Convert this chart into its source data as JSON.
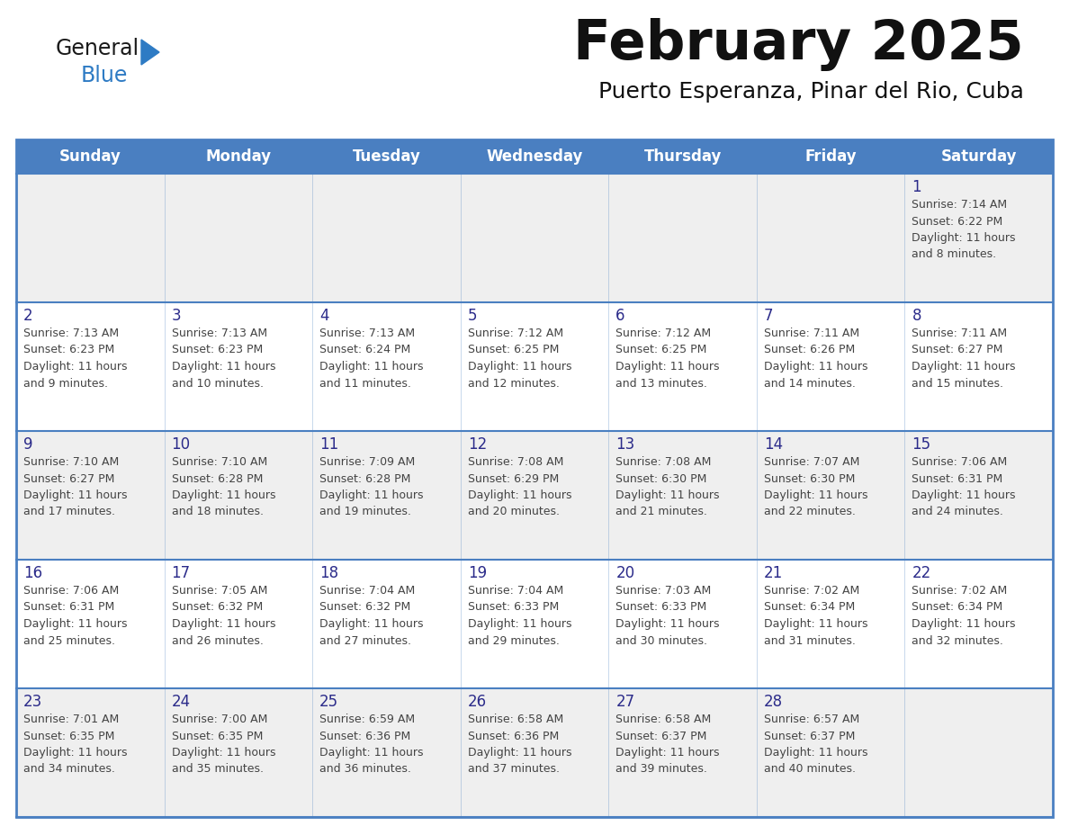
{
  "title": "February 2025",
  "subtitle": "Puerto Esperanza, Pinar del Rio, Cuba",
  "header_bg": "#4a7fc1",
  "header_text_color": "#ffffff",
  "row_bg_odd": "#efefef",
  "row_bg_even": "#ffffff",
  "cell_text_color": "#444444",
  "day_number_color": "#2b2b8a",
  "border_color": "#4a7fc1",
  "days_of_week": [
    "Sunday",
    "Monday",
    "Tuesday",
    "Wednesday",
    "Thursday",
    "Friday",
    "Saturday"
  ],
  "logo_general_color": "#1a1a1a",
  "logo_blue_color": "#2e7bc4",
  "logo_triangle_color": "#2e7bc4",
  "calendar_data": [
    [
      {
        "day": "",
        "sunrise": "",
        "sunset": "",
        "daylight": ""
      },
      {
        "day": "",
        "sunrise": "",
        "sunset": "",
        "daylight": ""
      },
      {
        "day": "",
        "sunrise": "",
        "sunset": "",
        "daylight": ""
      },
      {
        "day": "",
        "sunrise": "",
        "sunset": "",
        "daylight": ""
      },
      {
        "day": "",
        "sunrise": "",
        "sunset": "",
        "daylight": ""
      },
      {
        "day": "",
        "sunrise": "",
        "sunset": "",
        "daylight": ""
      },
      {
        "day": "1",
        "sunrise": "7:14 AM",
        "sunset": "6:22 PM",
        "daylight": "11 hours\nand 8 minutes."
      }
    ],
    [
      {
        "day": "2",
        "sunrise": "7:13 AM",
        "sunset": "6:23 PM",
        "daylight": "11 hours\nand 9 minutes."
      },
      {
        "day": "3",
        "sunrise": "7:13 AM",
        "sunset": "6:23 PM",
        "daylight": "11 hours\nand 10 minutes."
      },
      {
        "day": "4",
        "sunrise": "7:13 AM",
        "sunset": "6:24 PM",
        "daylight": "11 hours\nand 11 minutes."
      },
      {
        "day": "5",
        "sunrise": "7:12 AM",
        "sunset": "6:25 PM",
        "daylight": "11 hours\nand 12 minutes."
      },
      {
        "day": "6",
        "sunrise": "7:12 AM",
        "sunset": "6:25 PM",
        "daylight": "11 hours\nand 13 minutes."
      },
      {
        "day": "7",
        "sunrise": "7:11 AM",
        "sunset": "6:26 PM",
        "daylight": "11 hours\nand 14 minutes."
      },
      {
        "day": "8",
        "sunrise": "7:11 AM",
        "sunset": "6:27 PM",
        "daylight": "11 hours\nand 15 minutes."
      }
    ],
    [
      {
        "day": "9",
        "sunrise": "7:10 AM",
        "sunset": "6:27 PM",
        "daylight": "11 hours\nand 17 minutes."
      },
      {
        "day": "10",
        "sunrise": "7:10 AM",
        "sunset": "6:28 PM",
        "daylight": "11 hours\nand 18 minutes."
      },
      {
        "day": "11",
        "sunrise": "7:09 AM",
        "sunset": "6:28 PM",
        "daylight": "11 hours\nand 19 minutes."
      },
      {
        "day": "12",
        "sunrise": "7:08 AM",
        "sunset": "6:29 PM",
        "daylight": "11 hours\nand 20 minutes."
      },
      {
        "day": "13",
        "sunrise": "7:08 AM",
        "sunset": "6:30 PM",
        "daylight": "11 hours\nand 21 minutes."
      },
      {
        "day": "14",
        "sunrise": "7:07 AM",
        "sunset": "6:30 PM",
        "daylight": "11 hours\nand 22 minutes."
      },
      {
        "day": "15",
        "sunrise": "7:06 AM",
        "sunset": "6:31 PM",
        "daylight": "11 hours\nand 24 minutes."
      }
    ],
    [
      {
        "day": "16",
        "sunrise": "7:06 AM",
        "sunset": "6:31 PM",
        "daylight": "11 hours\nand 25 minutes."
      },
      {
        "day": "17",
        "sunrise": "7:05 AM",
        "sunset": "6:32 PM",
        "daylight": "11 hours\nand 26 minutes."
      },
      {
        "day": "18",
        "sunrise": "7:04 AM",
        "sunset": "6:32 PM",
        "daylight": "11 hours\nand 27 minutes."
      },
      {
        "day": "19",
        "sunrise": "7:04 AM",
        "sunset": "6:33 PM",
        "daylight": "11 hours\nand 29 minutes."
      },
      {
        "day": "20",
        "sunrise": "7:03 AM",
        "sunset": "6:33 PM",
        "daylight": "11 hours\nand 30 minutes."
      },
      {
        "day": "21",
        "sunrise": "7:02 AM",
        "sunset": "6:34 PM",
        "daylight": "11 hours\nand 31 minutes."
      },
      {
        "day": "22",
        "sunrise": "7:02 AM",
        "sunset": "6:34 PM",
        "daylight": "11 hours\nand 32 minutes."
      }
    ],
    [
      {
        "day": "23",
        "sunrise": "7:01 AM",
        "sunset": "6:35 PM",
        "daylight": "11 hours\nand 34 minutes."
      },
      {
        "day": "24",
        "sunrise": "7:00 AM",
        "sunset": "6:35 PM",
        "daylight": "11 hours\nand 35 minutes."
      },
      {
        "day": "25",
        "sunrise": "6:59 AM",
        "sunset": "6:36 PM",
        "daylight": "11 hours\nand 36 minutes."
      },
      {
        "day": "26",
        "sunrise": "6:58 AM",
        "sunset": "6:36 PM",
        "daylight": "11 hours\nand 37 minutes."
      },
      {
        "day": "27",
        "sunrise": "6:58 AM",
        "sunset": "6:37 PM",
        "daylight": "11 hours\nand 39 minutes."
      },
      {
        "day": "28",
        "sunrise": "6:57 AM",
        "sunset": "6:37 PM",
        "daylight": "11 hours\nand 40 minutes."
      },
      {
        "day": "",
        "sunrise": "",
        "sunset": "",
        "daylight": ""
      }
    ]
  ]
}
